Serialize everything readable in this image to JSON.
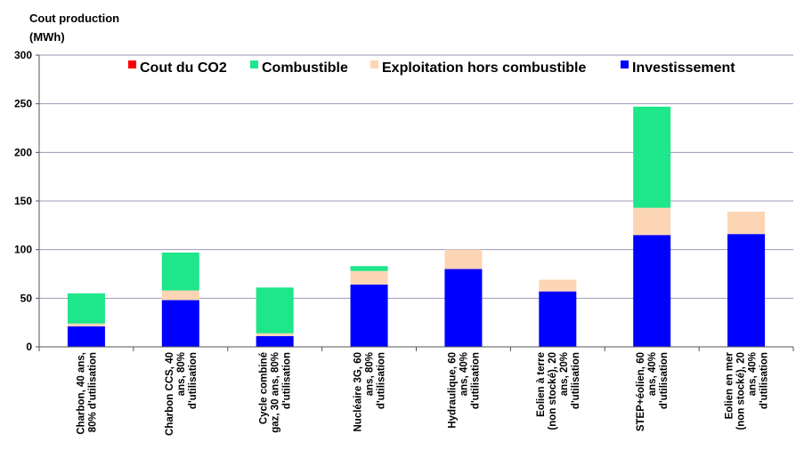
{
  "chart_data": {
    "type": "bar",
    "stacked": true,
    "title": "",
    "ylabel_lines": [
      "Cout production",
      "(MWh)"
    ],
    "ylim": [
      0,
      300
    ],
    "yticks": [
      0,
      50,
      100,
      150,
      200,
      250,
      300
    ],
    "grid": true,
    "legend_position": "top",
    "categories": [
      [
        "Charbon, 40 ans,",
        "80% d'utilisation"
      ],
      [
        "Charbon CCS, 40",
        "ans, 80%",
        "d'utilisation"
      ],
      [
        "Cycle combiné",
        "gaz, 30 ans, 80%",
        "d'utilisation"
      ],
      [
        "Nucléaire 3G, 60",
        "ans, 80%",
        "d'utilisation"
      ],
      [
        "Hydraulique, 60",
        "ans, 40%",
        "d'utilisation"
      ],
      [
        "Eolien à terre",
        "(non stocké), 20",
        "ans, 20%",
        "d'utilisation"
      ],
      [
        "STEP+éolien, 60",
        "ans, 40%",
        "d'utilisation"
      ],
      [
        "Eolien en mer",
        "(non stocké), 20",
        "ans, 40%",
        "d'utilisation"
      ]
    ],
    "series": [
      {
        "name": "Investissement",
        "color": "#0000ff",
        "values": [
          21,
          48,
          11,
          64,
          80,
          57,
          115,
          116
        ]
      },
      {
        "name": "Exploitation hors combustible",
        "color": "#fcd5b5",
        "values": [
          3,
          10,
          3,
          14,
          20,
          12,
          28,
          23
        ]
      },
      {
        "name": "Combustible",
        "color": "#1ee68a",
        "values": [
          31,
          39,
          47,
          5,
          0,
          0,
          104,
          0
        ]
      },
      {
        "name": "Cout du CO2",
        "color": "#ff0000",
        "values": [
          0,
          0,
          0,
          0,
          0,
          0,
          0,
          0
        ]
      }
    ],
    "legend_order": [
      "Cout du CO2",
      "Combustible",
      "Exploitation hors combustible",
      "Investissement"
    ]
  }
}
